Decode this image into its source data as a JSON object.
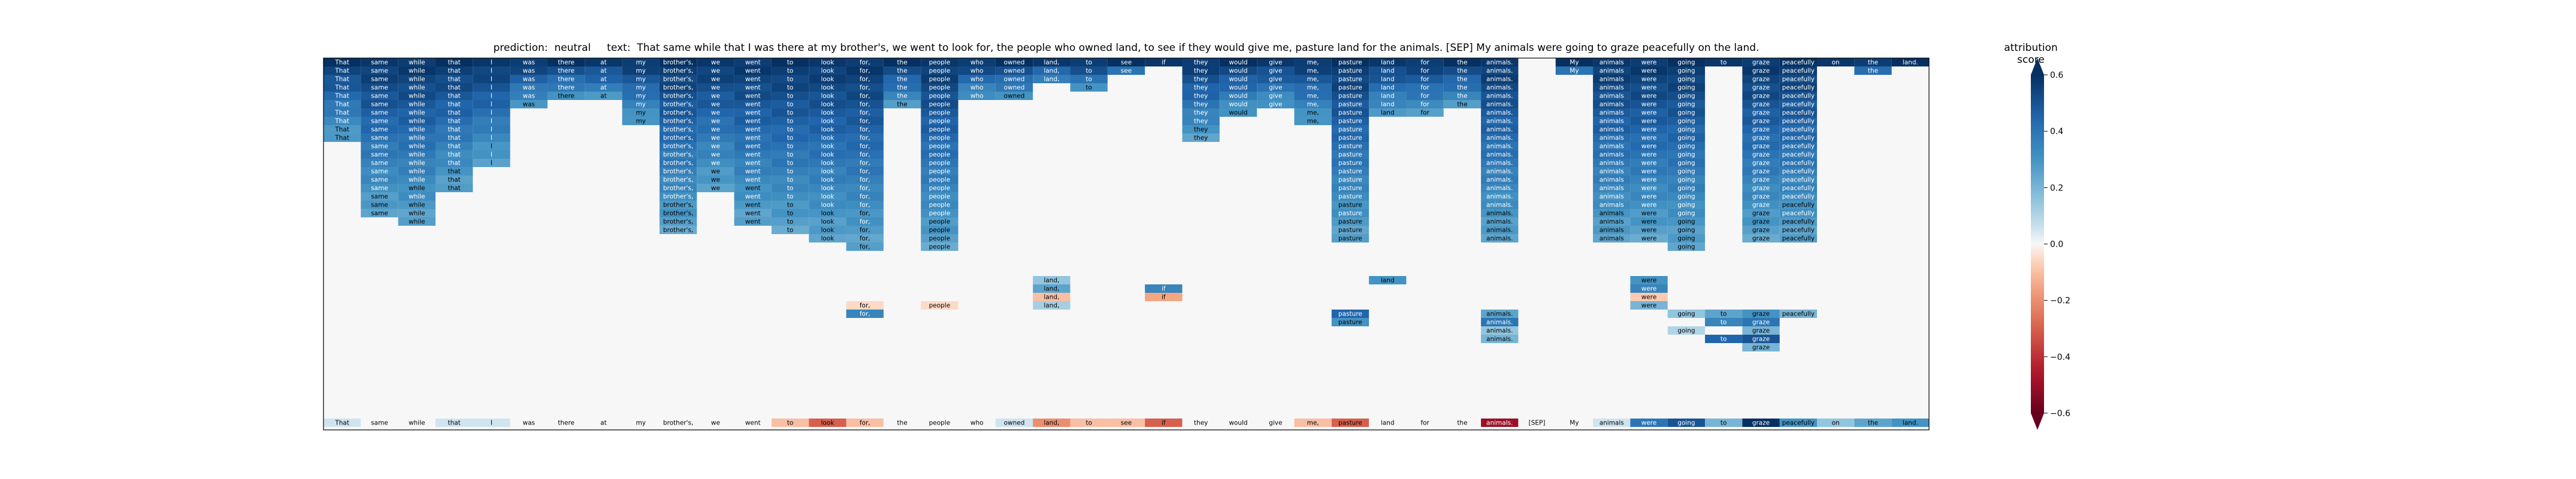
{
  "chart_data": {
    "type": "heatmap",
    "title": "prediction:  neutral     text:  That same while that I was there at my brother's, we went to look for, the people who owned land, to see if they would give me, pasture land for the animals. [SEP] My animals were going to graze peacefully on the land.",
    "prediction": "neutral",
    "tokens": [
      "That",
      "same",
      "while",
      "that",
      "I",
      "was",
      "there",
      "at",
      "my",
      "brother's,",
      "we",
      "went",
      "to",
      "look",
      "for,",
      "the",
      "people",
      "who",
      "owned",
      "land,",
      "to",
      "see",
      "if",
      "they",
      "would",
      "give",
      "me,",
      "pasture",
      "land",
      "for",
      "the",
      "animals.",
      "[SEP]",
      "My",
      "animals",
      "were",
      "going",
      "to",
      "graze",
      "peacefully",
      "on",
      "the",
      "land."
    ],
    "bottom_scores": [
      0.05,
      0.0,
      0.0,
      0.05,
      0.05,
      0.0,
      0.0,
      0.0,
      0.0,
      0.0,
      0.0,
      0.0,
      -0.1,
      -0.3,
      -0.1,
      0.0,
      0.0,
      0.0,
      0.05,
      -0.2,
      -0.1,
      -0.1,
      -0.3,
      0.0,
      0.0,
      0.0,
      -0.1,
      -0.3,
      0.0,
      0.0,
      0.0,
      -0.5,
      0.0,
      0.0,
      0.05,
      0.4,
      0.5,
      0.2,
      0.6,
      0.3,
      0.15,
      0.25,
      0.3
    ],
    "colorbar": {
      "title": "attribution score",
      "range": [
        -0.6,
        0.6
      ],
      "ticks": [
        -0.6,
        -0.4,
        -0.2,
        0.0,
        0.2,
        0.4,
        0.6
      ],
      "colormap": "RdBu"
    }
  }
}
